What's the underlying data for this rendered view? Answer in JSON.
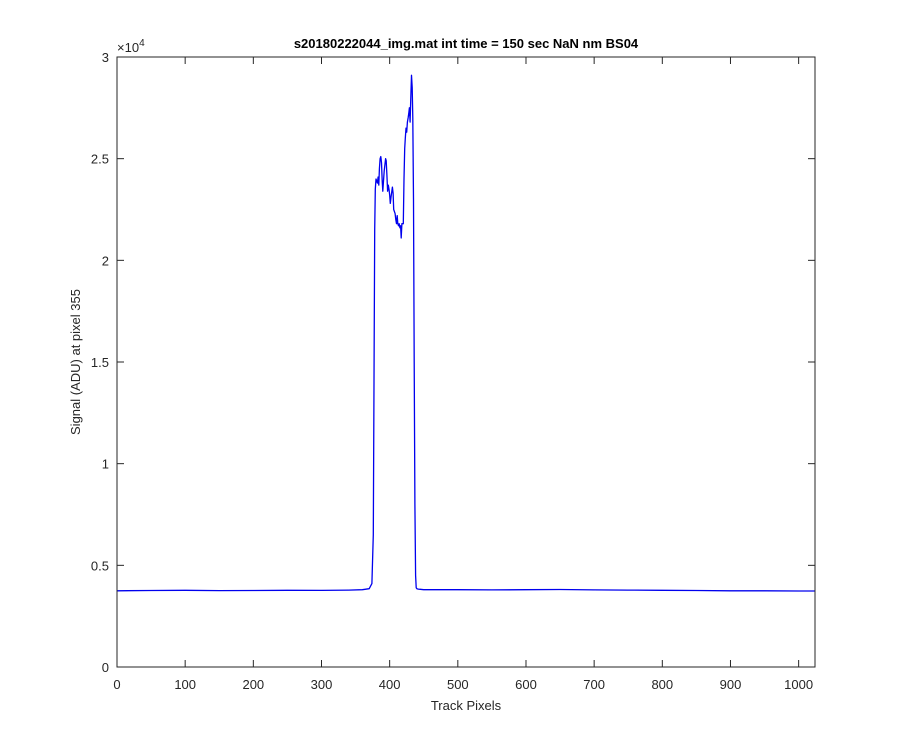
{
  "chart_data": {
    "type": "line",
    "title": "s20180222044_img.mat int time = 150 sec  NaN nm BS04",
    "xlabel": "Track Pixels",
    "ylabel": "Signal (ADU) at pixel 355",
    "xlim": [
      0,
      1024
    ],
    "ylim": [
      0,
      30000
    ],
    "y_exponent_label": "×10",
    "y_exponent_power": "4",
    "xticks": [
      0,
      100,
      200,
      300,
      400,
      500,
      600,
      700,
      800,
      900,
      1000
    ],
    "xtick_labels": [
      "0",
      "100",
      "200",
      "300",
      "400",
      "500",
      "600",
      "700",
      "800",
      "900",
      "1000"
    ],
    "yticks": [
      0,
      5000,
      10000,
      15000,
      20000,
      25000,
      30000
    ],
    "ytick_labels": [
      "0",
      "0.5",
      "1",
      "1.5",
      "2",
      "2.5",
      "3"
    ],
    "grid": false,
    "line_color": "#0000ee",
    "series": [
      {
        "x": [
          0,
          50,
          100,
          150,
          200,
          250,
          300,
          340,
          360,
          370,
          374,
          376,
          377,
          378,
          379,
          380,
          382,
          383,
          384,
          385,
          386,
          387,
          388,
          389,
          390,
          392,
          394,
          395,
          396,
          397,
          398,
          399,
          400,
          401,
          402,
          404,
          405,
          406,
          408,
          409,
          410,
          411,
          412,
          413,
          414,
          415,
          416,
          417,
          418,
          420,
          421,
          422,
          423,
          424,
          425,
          426,
          427,
          428,
          429,
          430,
          431,
          432,
          433,
          434,
          435,
          436,
          437,
          438,
          439,
          440,
          442,
          445,
          450,
          500,
          550,
          600,
          650,
          700,
          750,
          800,
          850,
          900,
          950,
          1000,
          1024
        ],
        "y": [
          3750,
          3760,
          3770,
          3755,
          3760,
          3770,
          3765,
          3780,
          3800,
          3850,
          4100,
          6500,
          14000,
          21500,
          23500,
          24000,
          23800,
          24100,
          23700,
          24500,
          25000,
          25100,
          24800,
          23900,
          23400,
          24400,
          25000,
          24900,
          24200,
          23400,
          23700,
          23500,
          23200,
          22800,
          23100,
          23600,
          23300,
          22500,
          22300,
          22000,
          21800,
          22200,
          21800,
          21700,
          21800,
          21600,
          21700,
          21100,
          21800,
          21800,
          24000,
          25500,
          26000,
          26500,
          26300,
          26800,
          27000,
          27200,
          27500,
          26800,
          28000,
          29100,
          28500,
          27000,
          23000,
          15000,
          8000,
          4500,
          3900,
          3850,
          3830,
          3820,
          3800,
          3800,
          3790,
          3800,
          3810,
          3790,
          3780,
          3770,
          3760,
          3750,
          3750,
          3740,
          3740
        ]
      }
    ]
  }
}
